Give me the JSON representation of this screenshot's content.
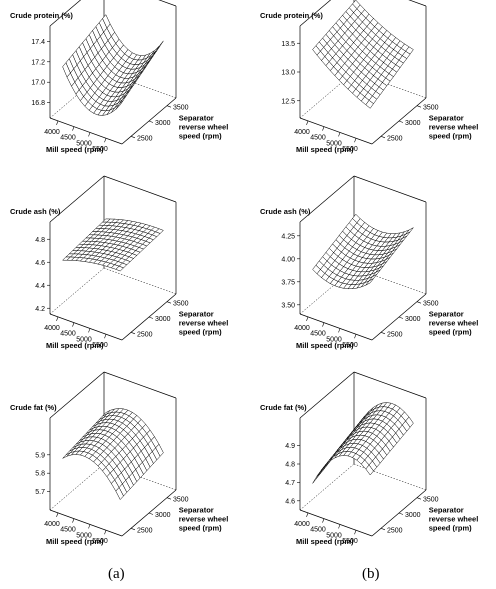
{
  "figure": {
    "captions": [
      "(a)",
      "(b)"
    ]
  },
  "chart_data": [
    {
      "type": "surface",
      "panel": "a",
      "title": "Crude protein (%)",
      "xlabel": "Mill speed (rpm)",
      "ylabel": "Separator reverse wheel speed (rpm)",
      "ylabel_lines": [
        "Separator",
        "reverse wheel",
        "speed (rpm)"
      ],
      "xticks": [
        "4000",
        "4500",
        "5000",
        "5500"
      ],
      "yticks": [
        "2500",
        "3000",
        "3500"
      ],
      "zticks": [
        "16.8",
        "17.0",
        "17.2",
        "17.4"
      ],
      "xlim": [
        3750,
        6000
      ],
      "ylim": [
        2250,
        3750
      ],
      "zlim": [
        16.65,
        17.55
      ],
      "corners": {
        "x_min_y_min": 17.28,
        "x_max_y_min": 17.05,
        "x_min_y_max": 17.45,
        "x_max_y_max": 17.4
      },
      "bowl": -0.4
    },
    {
      "type": "surface",
      "panel": "b",
      "title": "Crude protein (%)",
      "xlabel": "Mill speed (rpm)",
      "ylabel": "Separator reverse wheel speed (rpm)",
      "ylabel_lines": [
        "Separator",
        "reverse wheel",
        "speed (rpm)"
      ],
      "xticks": [
        "4000",
        "4500",
        "5000",
        "5500"
      ],
      "yticks": [
        "2500",
        "3000",
        "3500"
      ],
      "zticks": [
        "12.5",
        "13.0",
        "13.5"
      ],
      "xlim": [
        3750,
        6000
      ],
      "ylim": [
        2250,
        3750
      ],
      "zlim": [
        12.2,
        13.8
      ],
      "corners": {
        "x_min_y_min": 13.45,
        "x_max_y_min": 12.6,
        "x_min_y_max": 13.7,
        "x_max_y_max": 13.1
      },
      "bowl": -0.1
    },
    {
      "type": "surface",
      "panel": "a",
      "title": "Crude ash (%)",
      "xlabel": "Mill speed (rpm)",
      "ylabel": "Separator reverse wheel speed (rpm)",
      "ylabel_lines": [
        "Separator",
        "reverse wheel",
        "speed (rpm)"
      ],
      "xticks": [
        "4000",
        "4500",
        "5000",
        "5500"
      ],
      "yticks": [
        "2500",
        "3000",
        "3500"
      ],
      "zticks": [
        "4.2",
        "4.4",
        "4.6",
        "4.8"
      ],
      "xlim": [
        3750,
        6000
      ],
      "ylim": [
        2250,
        3750
      ],
      "zlim": [
        4.15,
        4.95
      ],
      "corners": {
        "x_min_y_min": 4.57,
        "x_max_y_min": 4.68,
        "x_min_y_max": 4.62,
        "x_max_y_max": 4.72
      },
      "bowl": 0.04
    },
    {
      "type": "surface",
      "panel": "b",
      "title": "Crude ash (%)",
      "xlabel": "Mill speed (rpm)",
      "ylabel": "Separator reverse wheel speed (rpm)",
      "ylabel_lines": [
        "Separator",
        "reverse wheel",
        "speed (rpm)"
      ],
      "xticks": [
        "4000",
        "4500",
        "5000",
        "5500"
      ],
      "yticks": [
        "2500",
        "3000",
        "3500"
      ],
      "zticks": [
        "3.50",
        "3.75",
        "4.00",
        "4.25"
      ],
      "xlim": [
        3750,
        6000
      ],
      "ylim": [
        2250,
        3750
      ],
      "zlim": [
        3.4,
        4.4
      ],
      "corners": {
        "x_min_y_min": 3.9,
        "x_max_y_min": 4.0,
        "x_min_y_max": 4.15,
        "x_max_y_max": 4.25
      },
      "bowl": -0.2
    },
    {
      "type": "surface",
      "panel": "a",
      "title": "Crude fat (%)",
      "xlabel": "Mill speed (rpm)",
      "ylabel": "Separator reverse wheel speed (rpm)",
      "ylabel_lines": [
        "Separator",
        "reverse wheel",
        "speed (rpm)"
      ],
      "xticks": [
        "4000",
        "4500",
        "5000",
        "5500"
      ],
      "yticks": [
        "2500",
        "3000",
        "3500"
      ],
      "zticks": [
        "5.7",
        "5.8",
        "5.9"
      ],
      "xlim": [
        3750,
        6000
      ],
      "ylim": [
        2250,
        3750
      ],
      "zlim": [
        5.6,
        6.1
      ],
      "corners": {
        "x_min_y_min": 5.82,
        "x_max_y_min": 5.68,
        "x_min_y_max": 5.88,
        "x_max_y_max": 5.75
      },
      "bowl": 0.16
    },
    {
      "type": "surface",
      "panel": "b",
      "title": "Crude fat (%)",
      "xlabel": "Mill speed (rpm)",
      "ylabel": "Separator reverse wheel speed (rpm)",
      "ylabel_lines": [
        "Separator",
        "reverse wheel",
        "speed (rpm)"
      ],
      "xticks": [
        "4000",
        "4500",
        "5000",
        "5500"
      ],
      "yticks": [
        "2500",
        "3000",
        "3500"
      ],
      "zticks": [
        "4.6",
        "4.7",
        "4.8",
        "4.9"
      ],
      "xlim": [
        3750,
        6000
      ],
      "ylim": [
        2250,
        3750
      ],
      "zlim": [
        4.55,
        5.05
      ],
      "corners": {
        "x_min_y_min": 4.58,
        "x_max_y_min": 4.78,
        "x_min_y_max": 4.7,
        "x_max_y_max": 4.88
      },
      "bowl": 0.2
    }
  ]
}
